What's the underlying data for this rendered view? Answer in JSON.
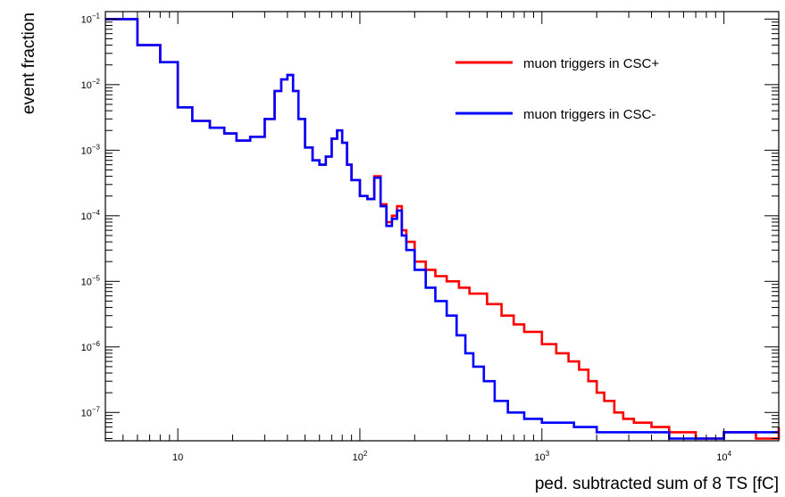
{
  "chart_data": {
    "type": "line",
    "title": "",
    "xlabel": "ped. subtracted sum of 8 TS [fC]",
    "ylabel": "event fraction",
    "x_scale": "log",
    "y_scale": "log",
    "xlim": [
      4,
      20000
    ],
    "ylim": [
      3.7e-08,
      0.13
    ],
    "x_ticks": [
      {
        "value": 10,
        "label": "10",
        "exp": ""
      },
      {
        "value": 100,
        "label": "10",
        "exp": "2"
      },
      {
        "value": 1000,
        "label": "10",
        "exp": "3"
      },
      {
        "value": 10000,
        "label": "10",
        "exp": "4"
      }
    ],
    "y_ticks": [
      {
        "value": 0.1,
        "label": "10",
        "exp": "−1"
      },
      {
        "value": 0.01,
        "label": "10",
        "exp": "−2"
      },
      {
        "value": 0.001,
        "label": "10",
        "exp": "−3"
      },
      {
        "value": 0.0001,
        "label": "10",
        "exp": "−4"
      },
      {
        "value": 1e-05,
        "label": "10",
        "exp": "−5"
      },
      {
        "value": 1e-06,
        "label": "10",
        "exp": "−6"
      },
      {
        "value": 1e-07,
        "label": "10",
        "exp": "−7"
      }
    ],
    "grid": false,
    "legend_position": "top-right",
    "series": [
      {
        "name": "muon triggers in CSC+",
        "color": "#ff0000",
        "x": [
          4,
          6,
          8,
          10,
          12,
          15,
          18,
          21,
          25,
          30,
          34,
          37,
          40,
          43,
          46,
          50,
          55,
          60,
          65,
          70,
          75,
          80,
          85,
          90,
          100,
          110,
          120,
          130,
          140,
          150,
          160,
          170,
          180,
          200,
          230,
          260,
          300,
          350,
          400,
          500,
          600,
          700,
          800,
          1000,
          1200,
          1400,
          1600,
          1800,
          2000,
          2200,
          2500,
          2800,
          3200,
          4000,
          5000,
          7000,
          10000,
          15000,
          20000
        ],
        "y": [
          0.1,
          0.04,
          0.022,
          0.0045,
          0.0028,
          0.0022,
          0.0018,
          0.0014,
          0.0016,
          0.003,
          0.008,
          0.012,
          0.014,
          0.008,
          0.003,
          0.0011,
          0.0007,
          0.0006,
          0.0008,
          0.0015,
          0.002,
          0.0013,
          0.0006,
          0.00035,
          0.0002,
          0.00018,
          0.0004,
          0.00015,
          8e-05,
          0.0001,
          0.00014,
          6e-05,
          4e-05,
          2e-05,
          1.5e-05,
          1.2e-05,
          1e-05,
          8e-06,
          6.5e-06,
          4.5e-06,
          3e-06,
          2.2e-06,
          1.7e-06,
          1.1e-06,
          8e-07,
          6e-07,
          4.5e-07,
          3e-07,
          2e-07,
          1.5e-07,
          1e-07,
          8e-08,
          7e-08,
          6e-08,
          5e-08,
          4e-08,
          5e-08,
          4e-08,
          6e-08
        ]
      },
      {
        "name": "muon triggers in CSC-",
        "color": "#0000ff",
        "x": [
          4,
          6,
          8,
          10,
          12,
          15,
          18,
          21,
          25,
          30,
          34,
          37,
          40,
          43,
          46,
          50,
          55,
          60,
          65,
          70,
          75,
          80,
          85,
          90,
          100,
          110,
          120,
          130,
          140,
          150,
          160,
          170,
          180,
          200,
          230,
          260,
          300,
          340,
          380,
          420,
          480,
          550,
          650,
          800,
          1000,
          1500,
          2000,
          3000,
          5000,
          10000,
          20000
        ],
        "y": [
          0.1,
          0.04,
          0.022,
          0.0045,
          0.0028,
          0.0022,
          0.0018,
          0.0014,
          0.0016,
          0.003,
          0.008,
          0.012,
          0.014,
          0.008,
          0.003,
          0.0011,
          0.0007,
          0.0006,
          0.0008,
          0.0015,
          0.002,
          0.0013,
          0.0006,
          0.00035,
          0.0002,
          0.00018,
          0.00038,
          0.00014,
          7e-05,
          9e-05,
          0.00012,
          5e-05,
          3e-05,
          1.5e-05,
          8e-06,
          5e-06,
          3e-06,
          1.5e-06,
          8e-07,
          5e-07,
          3e-07,
          1.5e-07,
          1e-07,
          8e-08,
          7e-08,
          6e-08,
          5e-08,
          5e-08,
          4e-08,
          5e-08,
          5e-08
        ]
      }
    ]
  }
}
